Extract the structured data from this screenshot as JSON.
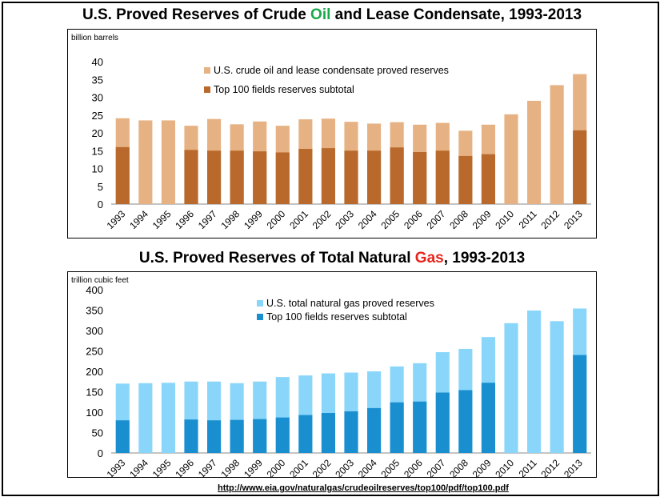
{
  "chart_data": [
    {
      "type": "bar",
      "title_parts": [
        "U.S. Proved Reserves of Crude ",
        "Oil",
        " and Lease Condensate, 1993-2013"
      ],
      "unit_label": "billion barrels",
      "categories": [
        "1993",
        "1994",
        "1995",
        "1996",
        "1997",
        "1998",
        "1999",
        "2000",
        "2001",
        "2002",
        "2003",
        "2004",
        "2005",
        "2006",
        "2007",
        "2008",
        "2009",
        "2010",
        "2011",
        "2012",
        "2013"
      ],
      "ylim": [
        0,
        40
      ],
      "yticks": [
        0,
        5,
        10,
        15,
        20,
        25,
        30,
        35,
        40
      ],
      "grid": false,
      "legend_position": "top-center",
      "series": [
        {
          "name": "U.S. crude oil and lease condensate proved reserves",
          "color": "#e6b283",
          "values": [
            24.1,
            23.5,
            23.5,
            22.0,
            23.9,
            22.4,
            23.2,
            22.0,
            23.8,
            24.0,
            23.1,
            22.6,
            23.0,
            22.3,
            22.8,
            20.6,
            22.3,
            25.2,
            29.0,
            33.4,
            36.5
          ]
        },
        {
          "name": "Top 100 fields reserves subtotal",
          "color": "#b8692b",
          "values": [
            16.0,
            null,
            null,
            15.2,
            15.0,
            15.0,
            14.8,
            14.5,
            15.5,
            15.7,
            15.0,
            15.0,
            15.9,
            14.6,
            15.0,
            13.5,
            14.0,
            null,
            null,
            null,
            20.7
          ]
        }
      ]
    },
    {
      "type": "bar",
      "title_parts": [
        "U.S. Proved Reserves of Total Natural ",
        "Gas",
        ", 1993-2013"
      ],
      "unit_label": "trillion cubic feet",
      "categories": [
        "1993",
        "1994",
        "1995",
        "1996",
        "1997",
        "1998",
        "1999",
        "2000",
        "2001",
        "2002",
        "2003",
        "2004",
        "2005",
        "2006",
        "2007",
        "2008",
        "2009",
        "2010",
        "2011",
        "2012",
        "2013"
      ],
      "ylim": [
        0,
        400
      ],
      "yticks": [
        0,
        50,
        100,
        150,
        200,
        250,
        300,
        350,
        400
      ],
      "grid": false,
      "legend_position": "top-center",
      "series": [
        {
          "name": "U.S. total natural gas proved reserves",
          "color": "#8ad6fa",
          "values": [
            170,
            171,
            172,
            175,
            175,
            171,
            175,
            186,
            190,
            195,
            197,
            200,
            212,
            220,
            247,
            255,
            284,
            318,
            349,
            323,
            354
          ]
        },
        {
          "name": "Top 100 fields reserves subtotal",
          "color": "#1a8fd0",
          "values": [
            80,
            null,
            null,
            82,
            80,
            81,
            83,
            87,
            93,
            98,
            102,
            110,
            124,
            126,
            148,
            154,
            172,
            null,
            null,
            null,
            240
          ]
        }
      ]
    }
  ],
  "source_url": "http://www.eia.gov/naturalgas/crudeoilreserves/top100/pdf/top100.pdf"
}
